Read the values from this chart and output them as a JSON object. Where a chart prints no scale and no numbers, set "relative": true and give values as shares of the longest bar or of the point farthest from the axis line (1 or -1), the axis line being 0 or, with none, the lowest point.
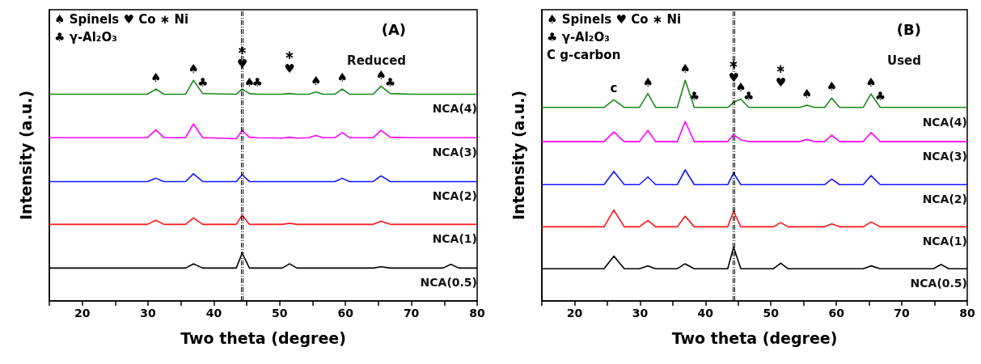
{
  "chart_data": [
    {
      "type": "line",
      "title": "(A)",
      "subtitle": "Reduced",
      "xlabel": "Two theta (degree)",
      "ylabel": "Intensity (a.u.)",
      "relative": true,
      "legend": false,
      "grid": false,
      "tick_labels": "x",
      "marker": "none",
      "line_style": "solid",
      "xlim": [
        15,
        80
      ],
      "xticks": [
        {
          "value": 15,
          "label": null
        },
        20,
        {
          "value": 25,
          "label": null
        },
        30,
        {
          "value": 35,
          "label": null
        },
        40,
        {
          "value": 45,
          "label": null
        },
        50,
        {
          "value": 55,
          "label": null
        },
        60,
        {
          "value": 65,
          "label": null
        },
        70,
        {
          "value": 75,
          "label": null
        },
        80
      ],
      "x": [
        15,
        20,
        25,
        29.9,
        31.2,
        32.4,
        35.7,
        36.9,
        38.3,
        43.4,
        44.3,
        45.4,
        46.6,
        50.4,
        51.5,
        52.6,
        54.4,
        55.5,
        56.6,
        58.4,
        59.5,
        60.6,
        64.2,
        65.4,
        66.8,
        70,
        74.8,
        76,
        77.2,
        80
      ],
      "series": [
        {
          "name": "NCA(4)",
          "color": "#1a8a1a",
          "values": [
            0.937,
            0.937,
            0.937,
            0.937,
            0.96,
            0.937,
            0.937,
            1.0,
            0.94,
            0.937,
            0.96,
            0.94,
            0.937,
            0.937,
            0.94,
            0.937,
            0.937,
            0.947,
            0.937,
            0.937,
            0.96,
            0.937,
            0.937,
            0.973,
            0.94,
            0.937,
            0.937,
            0.937,
            0.937,
            0.937
          ]
        },
        {
          "name": "NCA(3)",
          "color": "#ff00ff",
          "values": [
            0.74,
            0.74,
            0.74,
            0.74,
            0.776,
            0.74,
            0.74,
            0.802,
            0.74,
            0.735,
            0.772,
            0.742,
            0.74,
            0.738,
            0.742,
            0.738,
            0.74,
            0.75,
            0.74,
            0.74,
            0.763,
            0.74,
            0.74,
            0.773,
            0.742,
            0.74,
            0.74,
            0.74,
            0.74,
            0.74
          ]
        },
        {
          "name": "NCA(2)",
          "color": "#1414ff",
          "values": [
            0.541,
            0.541,
            0.541,
            0.541,
            0.556,
            0.541,
            0.541,
            0.576,
            0.541,
            0.541,
            0.572,
            0.541,
            0.541,
            0.541,
            0.541,
            0.541,
            0.541,
            0.541,
            0.541,
            0.541,
            0.556,
            0.541,
            0.541,
            0.567,
            0.541,
            0.541,
            0.541,
            0.541,
            0.541,
            0.541
          ]
        },
        {
          "name": "NCA(1)",
          "color": "#ff1414",
          "values": [
            0.347,
            0.347,
            0.347,
            0.347,
            0.366,
            0.347,
            0.347,
            0.376,
            0.347,
            0.347,
            0.389,
            0.347,
            0.347,
            0.347,
            0.352,
            0.347,
            0.347,
            0.347,
            0.347,
            0.347,
            0.347,
            0.347,
            0.347,
            0.361,
            0.347,
            0.347,
            0.347,
            0.347,
            0.347,
            0.347
          ]
        },
        {
          "name": "NCA(0.5)",
          "color": "#000000",
          "values": [
            0.149,
            0.149,
            0.149,
            0.149,
            0.149,
            0.149,
            0.149,
            0.168,
            0.149,
            0.149,
            0.217,
            0.149,
            0.149,
            0.149,
            0.168,
            0.149,
            0.149,
            0.149,
            0.149,
            0.149,
            0.149,
            0.149,
            0.149,
            0.155,
            0.149,
            0.149,
            0.149,
            0.166,
            0.149,
            0.149
          ]
        }
      ],
      "ref_lines": [
        {
          "axis": "x",
          "value": 44.2,
          "line_style": "dashed",
          "color": "#000000"
        },
        {
          "axis": "x",
          "value": 44.4,
          "line_style": "dashed",
          "color": "#000000"
        }
      ],
      "annotations": [
        "♠ Spinels ♥ Co ∗ Ni",
        "♣ γ-Al₂O₃",
        {
          "text": "♠",
          "x": 31.2,
          "y": 0.96
        },
        {
          "text": "♠",
          "x": 36.9,
          "y": 1.0
        },
        {
          "text": "♣",
          "x": 38.3,
          "y": 0.94
        },
        {
          "text": "♥",
          "x": 44.3,
          "y": 0.96
        },
        {
          "text": "∗",
          "x": 44.3,
          "y": 0.96
        },
        {
          "text": "♠",
          "x": 45.4,
          "y": 0.94
        },
        {
          "text": "♣",
          "x": 46.6,
          "y": 0.937
        },
        {
          "text": "♥",
          "x": 51.5,
          "y": 0.94
        },
        {
          "text": "∗",
          "x": 51.5,
          "y": 0.94
        },
        {
          "text": "♠",
          "x": 55.5,
          "y": 0.947
        },
        {
          "text": "♠",
          "x": 59.5,
          "y": 0.96
        },
        {
          "text": "♠",
          "x": 65.4,
          "y": 0.973
        },
        {
          "text": "♣",
          "x": 66.8,
          "y": 0.94
        }
      ]
    },
    {
      "type": "line",
      "title": "(B)",
      "subtitle": "Used",
      "xlabel": "Two theta (degree)",
      "ylabel": "Intensity (a.u.)",
      "relative": true,
      "legend": false,
      "grid": false,
      "tick_labels": "x",
      "marker": "none",
      "line_style": "solid",
      "xlim": [
        15,
        80
      ],
      "xticks": [
        {
          "value": 15,
          "label": null
        },
        20,
        {
          "value": 25,
          "label": null
        },
        30,
        {
          "value": 35,
          "label": null
        },
        40,
        {
          "value": 45,
          "label": null
        },
        50,
        {
          "value": 55,
          "label": null
        },
        60,
        {
          "value": 65,
          "label": null
        },
        70,
        {
          "value": 75,
          "label": null
        },
        80
      ],
      "x": [
        15,
        20,
        24.5,
        26,
        27.6,
        29.9,
        31.2,
        32.4,
        35.7,
        36.9,
        38.3,
        43.4,
        44.3,
        45.4,
        46.6,
        50.4,
        51.5,
        52.6,
        54.4,
        55.5,
        56.6,
        58.2,
        59.3,
        60.5,
        64.1,
        65.3,
        66.7,
        70,
        74.8,
        76,
        77.2,
        80
      ],
      "series": [
        {
          "name": "NCA(4)",
          "color": "#1a8a1a",
          "values": [
            0.877,
            0.877,
            0.877,
            0.912,
            0.877,
            0.877,
            0.94,
            0.877,
            0.877,
            1.0,
            0.877,
            0.877,
            0.9,
            0.915,
            0.877,
            0.877,
            0.877,
            0.877,
            0.877,
            0.887,
            0.877,
            0.877,
            0.919,
            0.877,
            0.877,
            0.938,
            0.877,
            0.877,
            0.877,
            0.877,
            0.877,
            0.877
          ]
        },
        {
          "name": "NCA(3)",
          "color": "#ff00ff",
          "values": [
            0.722,
            0.722,
            0.722,
            0.766,
            0.722,
            0.722,
            0.773,
            0.722,
            0.722,
            0.813,
            0.722,
            0.722,
            0.754,
            0.73,
            0.722,
            0.722,
            0.722,
            0.722,
            0.722,
            0.732,
            0.722,
            0.722,
            0.751,
            0.722,
            0.722,
            0.763,
            0.722,
            0.722,
            0.722,
            0.722,
            0.722,
            0.722
          ]
        },
        {
          "name": "NCA(2)",
          "color": "#1414ff",
          "values": [
            0.527,
            0.527,
            0.527,
            0.587,
            0.527,
            0.527,
            0.562,
            0.527,
            0.527,
            0.594,
            0.527,
            0.527,
            0.58,
            0.527,
            0.527,
            0.527,
            0.527,
            0.527,
            0.527,
            0.527,
            0.527,
            0.527,
            0.552,
            0.527,
            0.527,
            0.568,
            0.527,
            0.527,
            0.527,
            0.527,
            0.527,
            0.527
          ]
        },
        {
          "name": "NCA(1)",
          "color": "#ff1414",
          "values": [
            0.336,
            0.336,
            0.336,
            0.412,
            0.336,
            0.336,
            0.364,
            0.336,
            0.336,
            0.384,
            0.336,
            0.336,
            0.406,
            0.336,
            0.336,
            0.336,
            0.355,
            0.336,
            0.336,
            0.336,
            0.336,
            0.336,
            0.349,
            0.336,
            0.336,
            0.358,
            0.336,
            0.336,
            0.336,
            0.336,
            0.336,
            0.336
          ]
        },
        {
          "name": "NCA(0.5)",
          "color": "#000000",
          "values": [
            0.146,
            0.146,
            0.146,
            0.203,
            0.146,
            0.146,
            0.159,
            0.146,
            0.146,
            0.168,
            0.146,
            0.146,
            0.244,
            0.146,
            0.146,
            0.146,
            0.171,
            0.146,
            0.146,
            0.146,
            0.146,
            0.146,
            0.146,
            0.146,
            0.146,
            0.159,
            0.146,
            0.146,
            0.146,
            0.165,
            0.146,
            0.146
          ]
        }
      ],
      "ref_lines": [
        {
          "axis": "x",
          "value": 44.2,
          "line_style": "dashed",
          "color": "#000000"
        },
        {
          "axis": "x",
          "value": 44.4,
          "line_style": "dashed",
          "color": "#000000"
        }
      ],
      "annotations": [
        "♠ Spinels ♥ Co ∗ Ni",
        "♣ γ-Al₂O₃",
        "C g-carbon",
        {
          "text": "c",
          "x": 26,
          "y": 0.912
        },
        {
          "text": "♠",
          "x": 31.2,
          "y": 0.94
        },
        {
          "text": "♠",
          "x": 36.9,
          "y": 1.0
        },
        {
          "text": "♣",
          "x": 38.3,
          "y": 0.877
        },
        {
          "text": "♥",
          "x": 44.3,
          "y": 0.9
        },
        {
          "text": "∗",
          "x": 44.3,
          "y": 0.9
        },
        {
          "text": "♠",
          "x": 45.4,
          "y": 0.915
        },
        {
          "text": "♣",
          "x": 46.6,
          "y": 0.877
        },
        {
          "text": "♥",
          "x": 51.5,
          "y": 0.877
        },
        {
          "text": "∗",
          "x": 51.5,
          "y": 0.877
        },
        {
          "text": "♠",
          "x": 55.5,
          "y": 0.887
        },
        {
          "text": "♠",
          "x": 59.3,
          "y": 0.919
        },
        {
          "text": "♠",
          "x": 65.3,
          "y": 0.938
        },
        {
          "text": "♣",
          "x": 66.7,
          "y": 0.877
        }
      ]
    }
  ]
}
